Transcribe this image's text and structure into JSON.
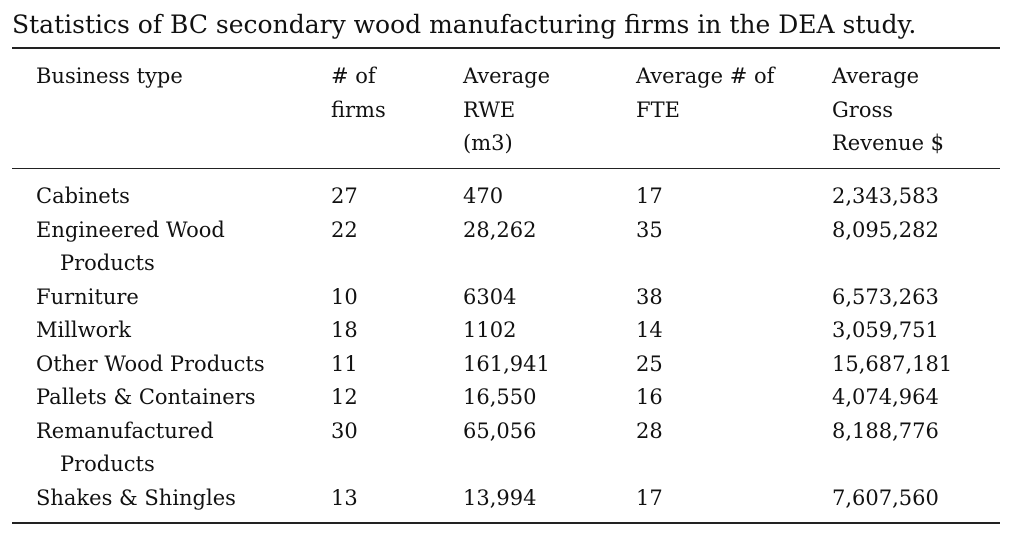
{
  "caption": "Statistics of BC secondary wood manufacturing firms in the DEA study.",
  "headers": {
    "business_type": "Business type",
    "num_firms_1": "# of",
    "num_firms_2": "firms",
    "avg_rwe_1": "Average",
    "avg_rwe_2": "RWE",
    "avg_rwe_3": "(m3)",
    "avg_fte_1": "Average # of",
    "avg_fte_2": "FTE",
    "avg_rev_1": "Average",
    "avg_rev_2": "Gross",
    "avg_rev_3": "Revenue $"
  },
  "rows": [
    {
      "type_1": "Cabinets",
      "type_2": "",
      "firms": "27",
      "rwe": "470",
      "fte": "17",
      "revenue": "2,343,583"
    },
    {
      "type_1": "Engineered Wood",
      "type_2": "Products",
      "firms": "22",
      "rwe": "28,262",
      "fte": "35",
      "revenue": "8,095,282"
    },
    {
      "type_1": "Furniture",
      "type_2": "",
      "firms": "10",
      "rwe": "6304",
      "fte": "38",
      "revenue": "6,573,263"
    },
    {
      "type_1": "Millwork",
      "type_2": "",
      "firms": "18",
      "rwe": "1102",
      "fte": "14",
      "revenue": "3,059,751"
    },
    {
      "type_1": "Other Wood Products",
      "type_2": "",
      "firms": "11",
      "rwe": "161,941",
      "fte": "25",
      "revenue": "15,687,181"
    },
    {
      "type_1": "Pallets & Containers",
      "type_2": "",
      "firms": "12",
      "rwe": "16,550",
      "fte": "16",
      "revenue": "4,074,964"
    },
    {
      "type_1": "Remanufactured",
      "type_2": "Products",
      "firms": "30",
      "rwe": "65,056",
      "fte": "28",
      "revenue": "8,188,776"
    },
    {
      "type_1": "Shakes & Shingles",
      "type_2": "",
      "firms": "13",
      "rwe": "13,994",
      "fte": "17",
      "revenue": "7,607,560"
    }
  ]
}
